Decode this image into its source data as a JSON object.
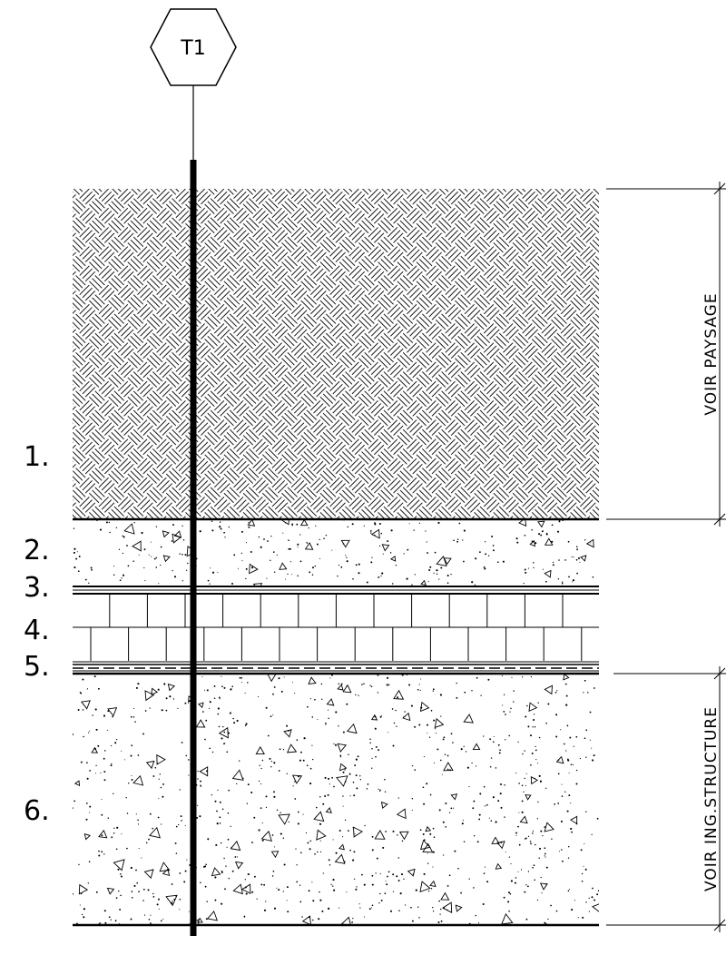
{
  "tag": {
    "label": "T1"
  },
  "layers": [
    {
      "id": "1",
      "label": "1.",
      "pattern": "basketweave"
    },
    {
      "id": "2",
      "label": "2.",
      "pattern": "aggregate"
    },
    {
      "id": "3",
      "label": "3.",
      "pattern": "membrane"
    },
    {
      "id": "4",
      "label": "4.",
      "pattern": "insulation"
    },
    {
      "id": "5",
      "label": "5.",
      "pattern": "waterproofing"
    },
    {
      "id": "6",
      "label": "6.",
      "pattern": "concrete"
    }
  ],
  "dimensions": {
    "upper": "VOIR  PAYSAGE",
    "lower": "VOIR  ING.STRUCTURE"
  },
  "colors": {
    "ink": "#000000",
    "paper": "#ffffff"
  }
}
